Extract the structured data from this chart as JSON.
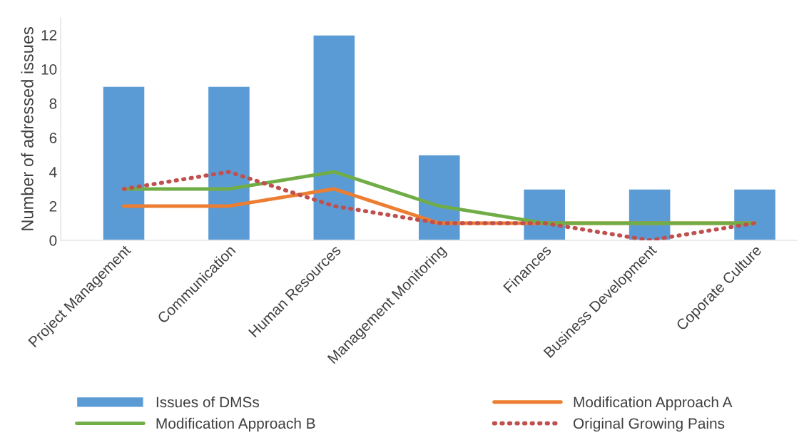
{
  "chart_data": {
    "type": "bar",
    "ylabel": "Number of adressed issues",
    "categories": [
      "Project Management",
      "Communication",
      "Human Resources",
      "Management Monitoring",
      "Finances",
      "Business Development",
      "Coporate Culture"
    ],
    "series": [
      {
        "name": "Issues of DMSs",
        "color": "#5b9bd5",
        "values": [
          9,
          9,
          12,
          5,
          3,
          3,
          3
        ]
      },
      {
        "name": "Modification Approach A",
        "type": "line",
        "color": "#ed7d31",
        "line_style": "solid",
        "values": [
          2,
          2,
          3,
          1,
          1,
          1,
          1
        ]
      },
      {
        "name": "Modification Approach B",
        "type": "line",
        "color": "#70ad47",
        "line_style": "solid",
        "values": [
          3,
          3,
          4,
          2,
          1,
          1,
          1
        ]
      },
      {
        "name": "Original Growing Pains",
        "type": "line",
        "color": "#c0504d",
        "line_style": "dotted",
        "values": [
          3,
          4,
          2,
          1,
          1,
          0,
          1
        ]
      }
    ],
    "ylim": [
      0,
      13
    ],
    "yticks": [
      0,
      2,
      4,
      6,
      8,
      10,
      12
    ],
    "grid": false,
    "legend": "bottom"
  }
}
